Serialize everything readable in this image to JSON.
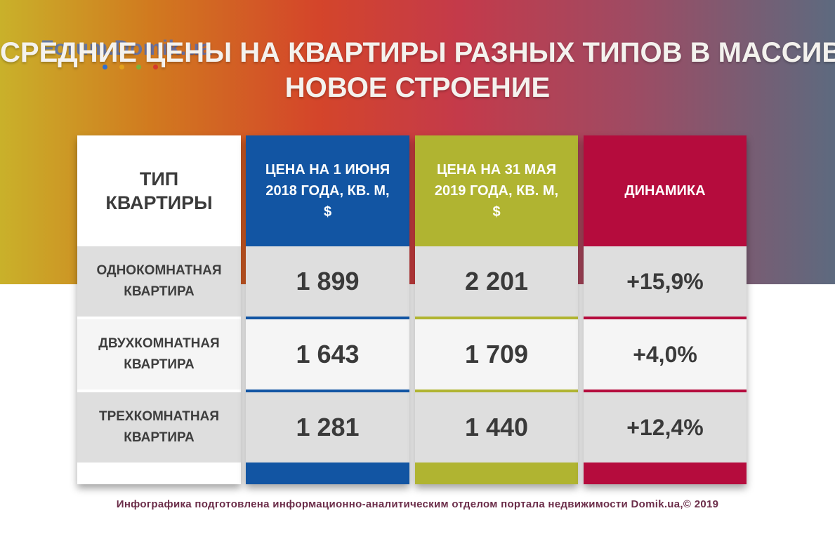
{
  "header": {
    "watermark": "Forum.Domik.ua",
    "title_line1": "СРЕДНИЕ ЦЕНЫ НА КВАРТИРЫ РАЗНЫХ ТИПОВ В МАССИВЕ",
    "title_line2": "НОВОЕ СТРОЕНИЕ"
  },
  "colors": {
    "col_2018": "#1255a3",
    "col_2019": "#b0b431",
    "col_dynamics": "#b50c3d",
    "footer_text": "#6b2d49"
  },
  "chart_data": {
    "type": "table",
    "columns": [
      "ТИП КВАРТИРЫ",
      "ЦЕНА НА 1 ИЮНЯ 2018 ГОДА, КВ. М, $",
      "ЦЕНА НА 31 МАЯ 2019 ГОДА, КВ. М, $",
      "ДИНАМИКА"
    ],
    "rows": [
      {
        "type": "ОДНОКОМНАТНАЯ КВАРТИРА",
        "price_2018": "1 899",
        "price_2019": "2 201",
        "dynamics": "+15,9%"
      },
      {
        "type": "ДВУХКОМНАТНАЯ КВАРТИРА",
        "price_2018": "1 643",
        "price_2019": "1 709",
        "dynamics": "+4,0%"
      },
      {
        "type": "ТРЕХКОМНАТНАЯ КВАРТИРА",
        "price_2018": "1 281",
        "price_2019": "1 440",
        "dynamics": "+12,4%"
      }
    ]
  },
  "footer": {
    "text": "Инфографика подготовлена информационно-аналитическим отделом портала недвижимости Domik.ua,© 2019"
  }
}
